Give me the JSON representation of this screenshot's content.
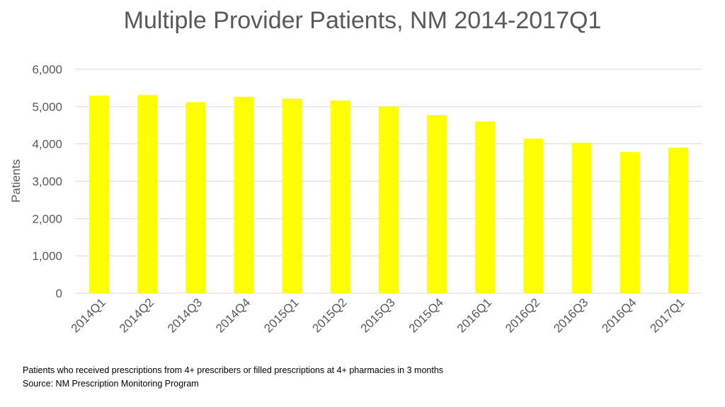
{
  "title": "Multiple Provider Patients, NM 2014-2017Q1",
  "notes": {
    "line1": "Patients who received prescriptions from 4+ prescribers or filled prescriptions at 4+ pharmacies in 3 months",
    "line2": "Source:  NM Prescription Monitoring Program"
  },
  "colors": {
    "bar": "#ffff00",
    "grid": "#d9d9d9",
    "text": "#595959"
  },
  "chart_data": {
    "type": "bar",
    "title": "Multiple Provider Patients, NM 2014-2017Q1",
    "xlabel": "",
    "ylabel": "Patients",
    "ylim": [
      0,
      6000
    ],
    "yticks": [
      0,
      1000,
      2000,
      3000,
      4000,
      5000,
      6000
    ],
    "ytick_labels": [
      "0",
      "1,000",
      "2,000",
      "3,000",
      "4,000",
      "5,000",
      "6,000"
    ],
    "grid": true,
    "legend": "none",
    "categories": [
      "2014Q1",
      "2014Q2",
      "2014Q3",
      "2014Q4",
      "2015Q1",
      "2015Q2",
      "2015Q3",
      "2015Q4",
      "2016Q1",
      "2016Q2",
      "2016Q3",
      "2016Q4",
      "2017Q1"
    ],
    "values": [
      5290,
      5310,
      5120,
      5260,
      5210,
      5160,
      5000,
      4770,
      4600,
      4140,
      4030,
      3780,
      3900
    ]
  }
}
